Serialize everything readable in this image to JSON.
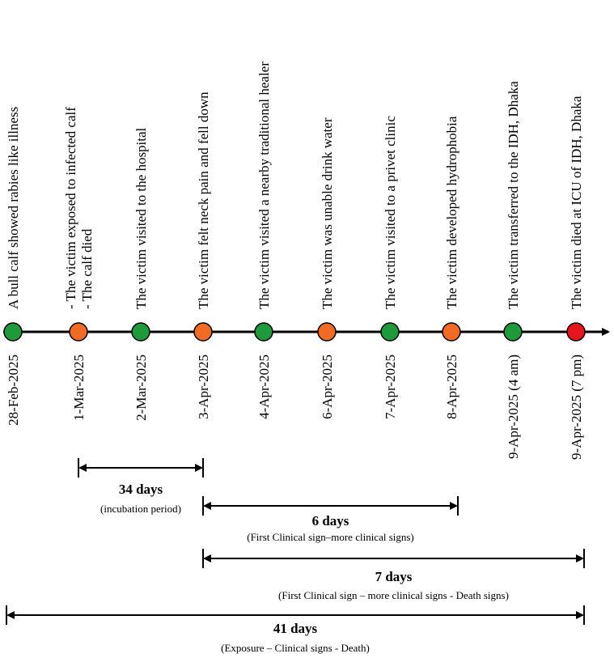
{
  "colors": {
    "green": "#1f9a3a",
    "orange": "#f26b24",
    "red": "#e8141b",
    "line": "#000000"
  },
  "events": [
    {
      "date": "28-Feb-2025",
      "lines": [
        "A bull calf showed rabies like illness"
      ],
      "color": "green"
    },
    {
      "date": "1-Mar-2025",
      "lines": [
        "- The victim exposed to infected calf",
        "- The calf died"
      ],
      "color": "orange"
    },
    {
      "date": "2-Mar-2025",
      "lines": [
        "The victim visited to the hospital"
      ],
      "color": "green"
    },
    {
      "date": "3-Apr-2025",
      "lines": [
        "The victim felt neck pain and fell down"
      ],
      "color": "orange"
    },
    {
      "date": "4-Apr-2025",
      "lines": [
        "The victim visited a nearby traditional healer"
      ],
      "color": "green"
    },
    {
      "date": "6-Apr-2025",
      "lines": [
        "The victim was unable drink water"
      ],
      "color": "orange"
    },
    {
      "date": "7-Apr-2025",
      "lines": [
        "The victim visited to a privet clinic"
      ],
      "color": "green"
    },
    {
      "date": "8-Apr-2025",
      "lines": [
        "The victim developed hydrophobia"
      ],
      "color": "orange"
    },
    {
      "date": "9-Apr-2025 (4 am)",
      "lines": [
        "The victim transferred to the IDH, Dhaka"
      ],
      "color": "green"
    },
    {
      "date": "9-Apr-2025 (7 pm)",
      "lines": [
        "The victim died at ICU of IDH, Dhaka"
      ],
      "color": "red"
    }
  ],
  "spans": [
    {
      "from": 1,
      "to": 3,
      "title": "34 days",
      "subtitle": "(incubation period)"
    },
    {
      "from": 3,
      "to": 7,
      "title": "6 days",
      "subtitle": "(First Clinical sign–more clinical signs)"
    },
    {
      "from": 3,
      "to": 9,
      "title": "7 days",
      "subtitle": "(First Clinical sign – more clinical signs - Death signs)"
    },
    {
      "from": 0,
      "to": 9,
      "title": "41 days",
      "subtitle": "(Exposure – Clinical signs - Death)"
    }
  ]
}
